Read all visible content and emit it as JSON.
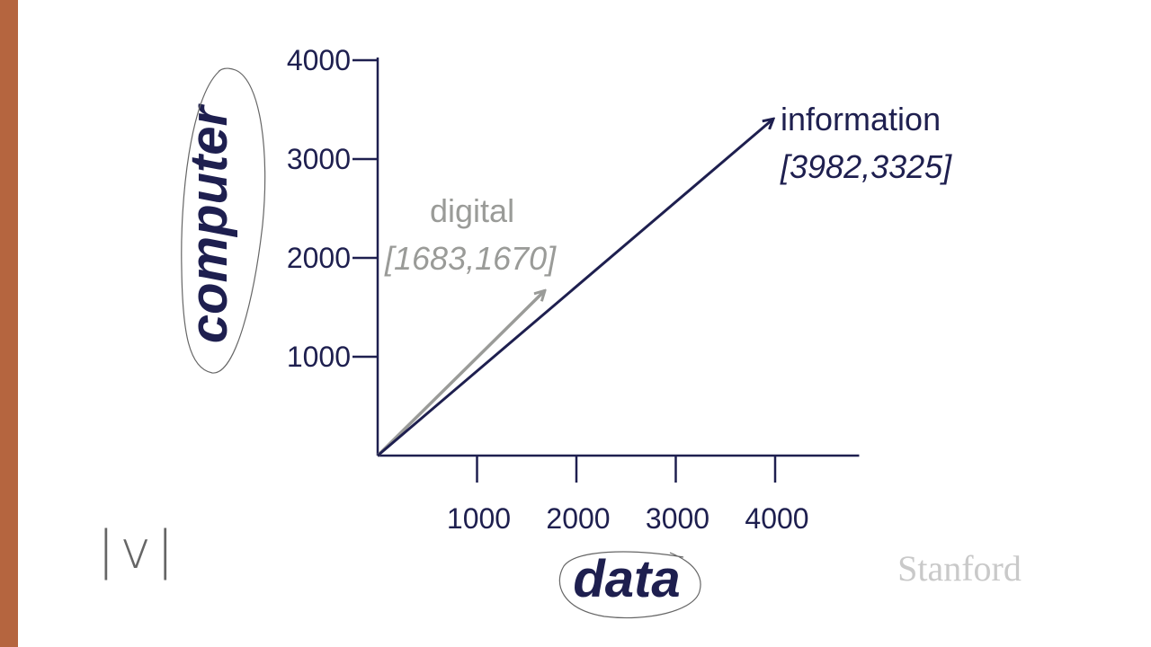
{
  "colors": {
    "axis": "#1e1f4f",
    "info_vector": "#1e1f4f",
    "digital_vector": "#9a9b98",
    "left_bar": "#b5653f",
    "ink": "#1e1f4f",
    "pencil": "#666666",
    "watermark": "#c9c9c9"
  },
  "chart_data": {
    "type": "vector",
    "xlabel": "data",
    "ylabel": "computer",
    "xlim": [
      0,
      4900
    ],
    "ylim": [
      0,
      4000
    ],
    "x_ticks": [
      1000,
      2000,
      3000,
      4000
    ],
    "y_ticks": [
      1000,
      2000,
      3000,
      4000
    ],
    "x_tick_labels": [
      "1000",
      "2000",
      "3000",
      "4000"
    ],
    "y_tick_labels": [
      "1000",
      "2000",
      "3000",
      "4000"
    ],
    "vectors": [
      {
        "name": "information",
        "coords_label": "[3982,3325]",
        "x": 3982,
        "y": 3325
      },
      {
        "name": "digital",
        "coords_label": "[1683,1670]",
        "x": 1683,
        "y": 1670
      }
    ]
  },
  "annotations": {
    "handwriting": "|v|"
  },
  "watermark": "Stanford"
}
